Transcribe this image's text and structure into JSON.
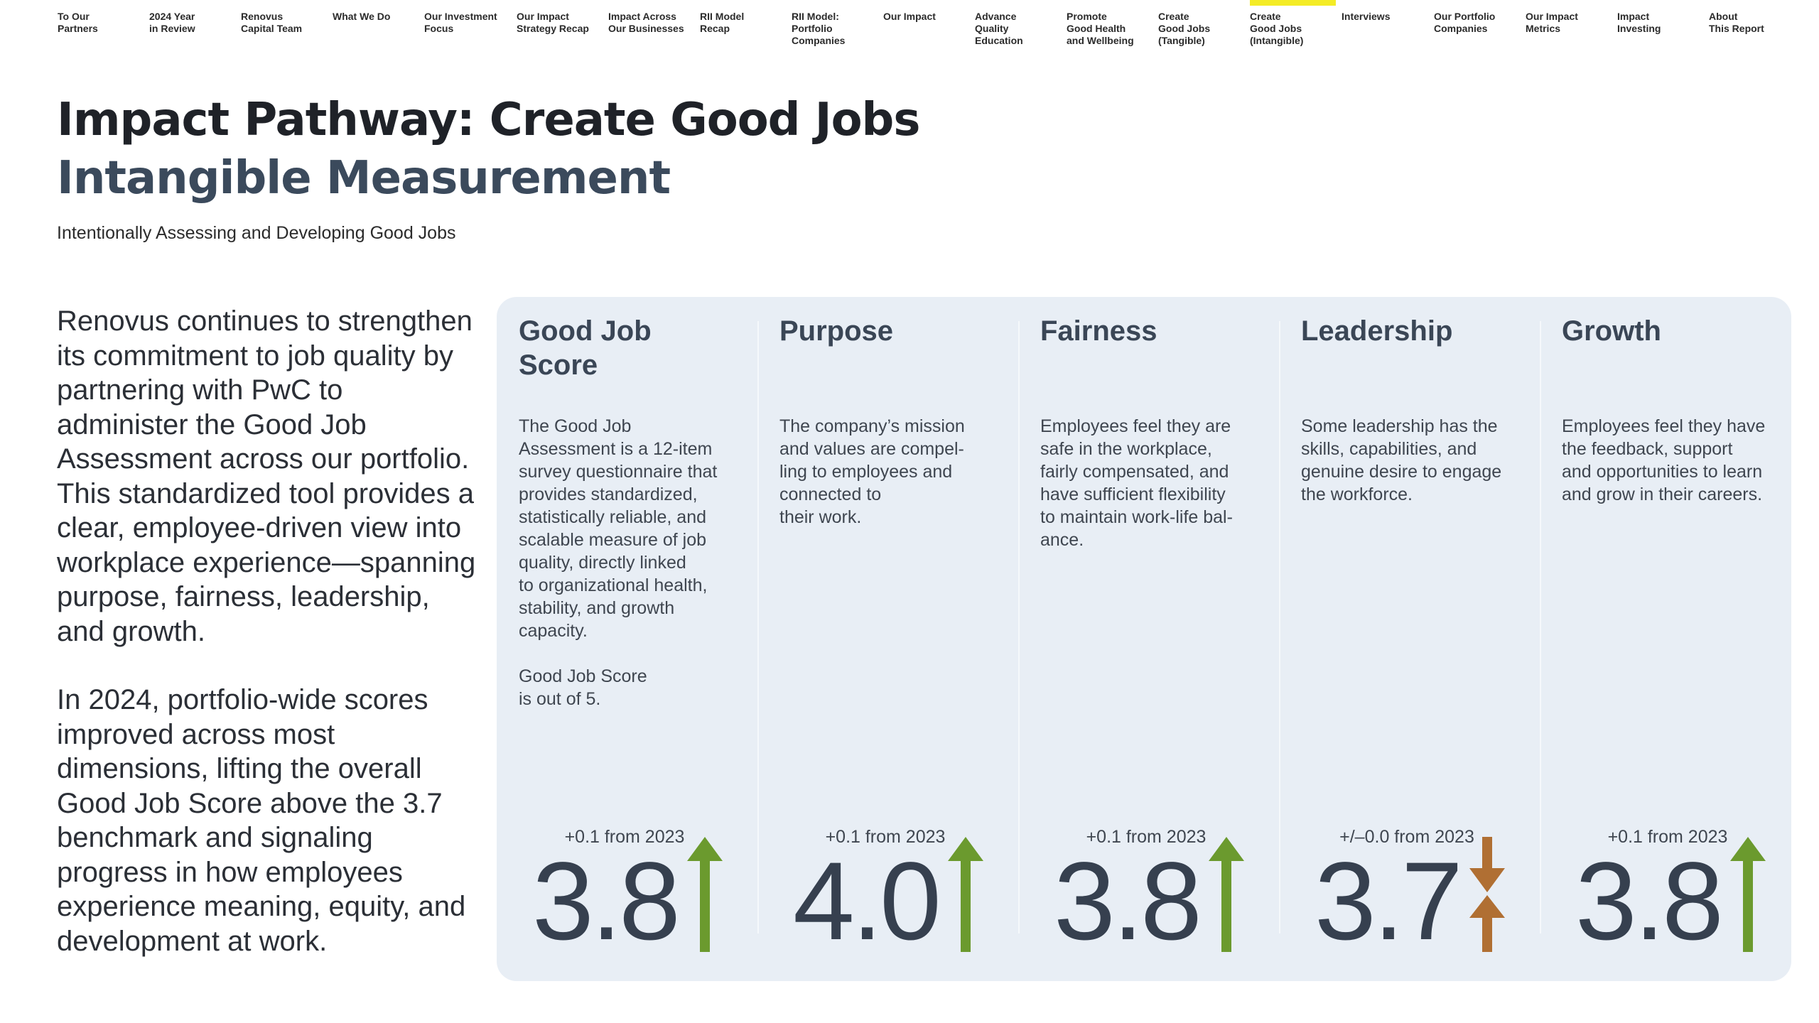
{
  "nav": {
    "items": [
      {
        "label": "To Our\nPartners",
        "active": false
      },
      {
        "label": "2024 Year\nin Review",
        "active": false
      },
      {
        "label": "Renovus\nCapital Team",
        "active": false
      },
      {
        "label": "What We Do",
        "active": false
      },
      {
        "label": "Our Investment\nFocus",
        "active": false
      },
      {
        "label": "Our Impact\nStrategy Recap",
        "active": false
      },
      {
        "label": "Impact Across\nOur Businesses",
        "active": false
      },
      {
        "label": "RII Model\nRecap",
        "active": false
      },
      {
        "label": "RII Model:\nPortfolio\nCompanies",
        "active": false
      },
      {
        "label": "Our Impact",
        "active": false
      },
      {
        "label": "Advance\nQuality\nEducation",
        "active": false
      },
      {
        "label": "Promote\nGood Health\nand Wellbeing",
        "active": false
      },
      {
        "label": "Create\nGood Jobs\n(Tangible)",
        "active": false
      },
      {
        "label": "Create\nGood Jobs\n(Intangible)",
        "active": true
      },
      {
        "label": "Interviews",
        "active": false
      },
      {
        "label": "Our Portfolio\nCompanies",
        "active": false
      },
      {
        "label": "Our Impact\nMetrics",
        "active": false
      },
      {
        "label": "Impact\nInvesting",
        "active": false
      },
      {
        "label": "About\nThis Report",
        "active": false
      }
    ],
    "active_color": "#f4ec26"
  },
  "header": {
    "title": "Impact Pathway: Create Good Jobs",
    "subtitle": "Intangible Measurement",
    "tagline": "Intentionally Assessing and Developing Good Jobs"
  },
  "narrative": {
    "paragraphs": [
      "Renovus continues to strengthen its commitment to job quality by partnering with PwC to administer the Good Job Assessment across our portfolio. This standardized tool provides a clear, employee-driven view into workplace experience—spanning purpose, fairness, leadership, and growth.",
      "In 2024, portfolio-wide scores improved across most dimensions, lifting the overall Good Job Score above the 3.7 benchmark and signaling progress in how employees experience meaning, equity, and development at work."
    ]
  },
  "colors": {
    "up": "#6b9a2e",
    "flat": "#b06f33",
    "card_bg": "#e8eef5"
  },
  "dimensions": [
    {
      "heading": "Good Job\nScore",
      "description": "The Good Job\nAssessment is a 12-item\nsurvey questionnaire that\nprovides standardized,\nstatistically reliable, and\nscalable measure of job\nquality, directly linked\nto organizational health,\nstability, and growth\ncapacity.\n\nGood Job Score\nis out of 5.",
      "delta": "+0.1 from 2023",
      "score": "3.8",
      "trend": "up",
      "trend_icon": "arrow-up-icon"
    },
    {
      "heading": "Purpose",
      "description": "The company’s mission\nand values are compel-\nling to employees and\nconnected to\ntheir work.",
      "delta": "+0.1 from 2023",
      "score": "4.0",
      "trend": "up",
      "trend_icon": "arrow-up-icon"
    },
    {
      "heading": "Fairness",
      "description": "Employees feel they are\nsafe in the workplace,\nfairly compensated, and\nhave sufficient flexibility\nto maintain work-life bal-\nance.",
      "delta": "+0.1 from 2023",
      "score": "3.8",
      "trend": "up",
      "trend_icon": "arrow-up-icon"
    },
    {
      "heading": "Leadership",
      "description": "Some leadership has the\nskills, capabilities, and\ngenuine desire to engage\nthe workforce.",
      "delta": "+/–0.0 from 2023",
      "score": "3.7",
      "trend": "flat",
      "trend_icon": "arrows-converge-icon"
    },
    {
      "heading": "Growth",
      "description": "Employees feel they have\nthe feedback, support\nand opportunities to learn\nand grow in their careers.",
      "delta": "+0.1 from 2023",
      "score": "3.8",
      "trend": "up",
      "trend_icon": "arrow-up-icon"
    }
  ]
}
